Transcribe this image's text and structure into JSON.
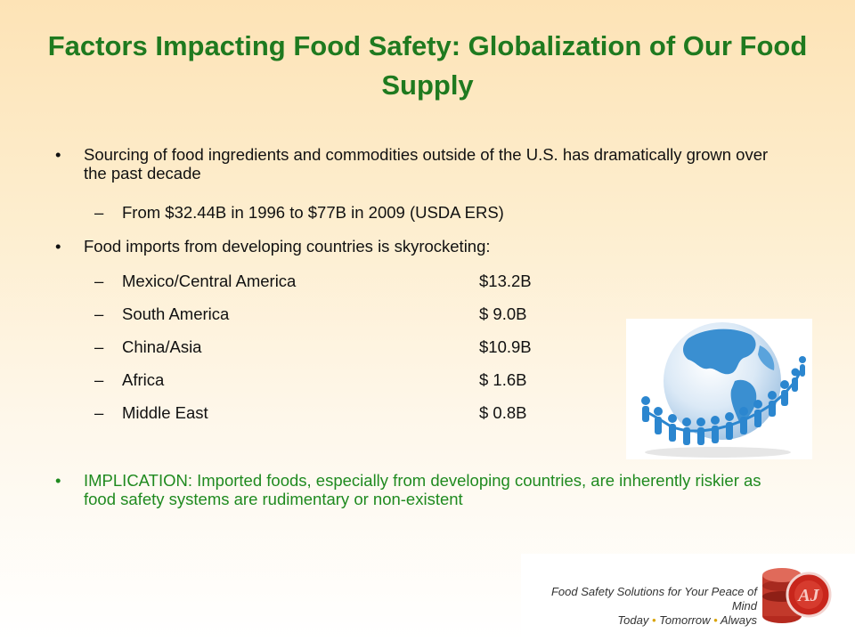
{
  "title": "Factors Impacting Food Safety: Globalization of Our Food Supply",
  "bullets": [
    {
      "text": "Sourcing of food ingredients and commodities outside of the U.S. has dramatically grown over the past decade"
    },
    {
      "text": "From $32.44B in 1996 to $77B in 2009 (USDA ERS)"
    },
    {
      "text": "Food imports from developing countries is skyrocketing:"
    },
    {
      "text": "IMPLICATION: Imported foods, especially from developing countries, are inherently riskier as food safety systems are rudimentary or non-existent"
    }
  ],
  "imports": [
    {
      "region": "Mexico/Central America",
      "amount": "$13.2B"
    },
    {
      "region": "South America",
      "amount": "$ 9.0B"
    },
    {
      "region": "China/Asia",
      "amount": "$10.9B"
    },
    {
      "region": "Africa",
      "amount": "$ 1.6B"
    },
    {
      "region": "Middle East",
      "amount": "$ 0.8B"
    }
  ],
  "symbols": {
    "bullet": "•",
    "dash": "–"
  },
  "footer": {
    "line1": "Food Safety Solutions for Your Peace of Mind",
    "today": "Today",
    "tomorrow": "Tomorrow",
    "always": "Always",
    "sep": "•",
    "logo_text": "AJ"
  },
  "colors": {
    "title": "#1f7a1f",
    "implication": "#1f8a1f",
    "globe": "#3a8fd1"
  },
  "image": {
    "icon": "globe-people-icon"
  }
}
